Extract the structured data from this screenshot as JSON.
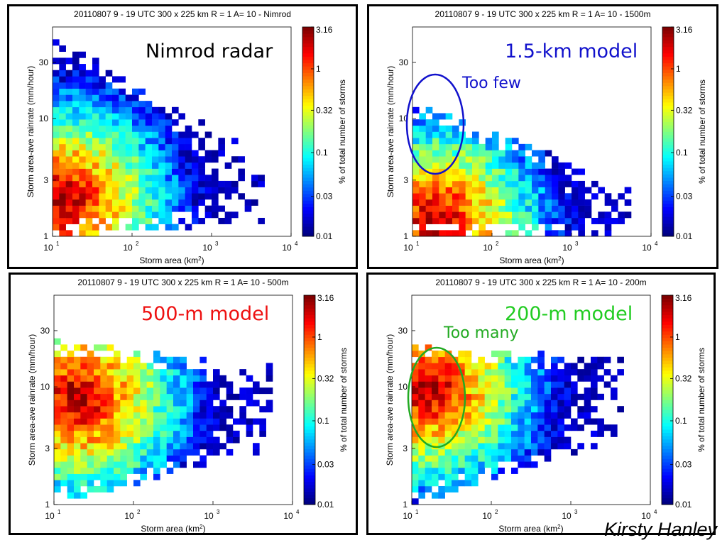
{
  "axis": {
    "xlabel": "Storm area (km",
    "xlabel_sup": "2",
    "xlabel_close": ")",
    "ylabel": "Storm area-ave rainrate (mm/hour)",
    "xticks": [
      "10",
      "10",
      "10",
      "10"
    ],
    "xtick_exponents": [
      "1",
      "2",
      "3",
      "4"
    ],
    "yticks": [
      "1",
      "3",
      "10",
      "30"
    ],
    "colorbar_label": "% of total number of storms",
    "colorbar_ticks": [
      "0.01",
      "0.03",
      "0.1",
      "0.32",
      "1",
      "3.16"
    ]
  },
  "panels": [
    {
      "id": "nimrod",
      "title": "20110807 9 - 19 UTC 300 x 225 km R = 1 A= 10 - Nimrod",
      "label": "Nimrod radar",
      "label_color": "#000000",
      "border_color": "#000000",
      "annotation": "",
      "annotation_color": "",
      "ellipse": false
    },
    {
      "id": "km15",
      "title": "20110807 9 - 19 UTC 300 x 225 km R = 1 A= 10 - 1500m",
      "label": "1.5-km model",
      "label_color": "#1111cc",
      "border_color": "#1a2fc4",
      "annotation": "Too few",
      "annotation_color": "#1111cc",
      "ellipse": true
    },
    {
      "id": "m500",
      "title": "20110807 9 - 19 UTC 300 x 225 km R = 1 A= 10 - 500m",
      "label": "500-m model",
      "label_color": "#ee1111",
      "border_color": "#dd2222",
      "annotation": "",
      "annotation_color": "",
      "ellipse": false
    },
    {
      "id": "m200",
      "title": "20110807 9 - 19 UTC 300 x 225 km R = 1 A= 10 - 200m",
      "label": "200-m model",
      "label_color": "#22cc22",
      "border_color": "#33dd33",
      "annotation": "Too many",
      "annotation_color": "#22aa22",
      "ellipse": true
    }
  ],
  "author": "Kirsty Hanley",
  "chart_data": [
    {
      "type": "heatmap",
      "title": "20110807 9 - 19 UTC 300 x 225 km R = 1 A= 10 - Nimrod",
      "xlabel": "Storm area (km2)",
      "ylabel": "Storm area-ave rainrate (mm/hour)",
      "xscale": "log",
      "yscale": "log",
      "xlim": [
        10,
        10000
      ],
      "ylim": [
        1,
        60
      ],
      "color_scale": "log",
      "clim": [
        0.01,
        3.16
      ],
      "colorbar_label": "% of total number of storms",
      "peak": {
        "x": 14,
        "y": 2,
        "value": 3.16
      },
      "extent": {
        "x_max": 5000,
        "y_max": 50
      }
    },
    {
      "type": "heatmap",
      "title": "20110807 9 - 19 UTC 300 x 225 km R = 1 A= 10 - 1500m",
      "xlabel": "Storm area (km2)",
      "ylabel": "Storm area-ave rainrate (mm/hour)",
      "xscale": "log",
      "yscale": "log",
      "xlim": [
        10,
        10000
      ],
      "ylim": [
        1,
        60
      ],
      "color_scale": "log",
      "clim": [
        0.01,
        3.16
      ],
      "colorbar_label": "% of total number of storms",
      "peak": {
        "x": 20,
        "y": 1.3,
        "value": 3.16
      },
      "extent": {
        "x_max": 6000,
        "y_max": 14
      }
    },
    {
      "type": "heatmap",
      "title": "20110807 9 - 19 UTC 300 x 225 km R = 1 A= 10 - 500m",
      "xlabel": "Storm area (km2)",
      "ylabel": "Storm area-ave rainrate (mm/hour)",
      "xscale": "log",
      "yscale": "log",
      "xlim": [
        10,
        10000
      ],
      "ylim": [
        1,
        60
      ],
      "color_scale": "log",
      "clim": [
        0.01,
        3.16
      ],
      "colorbar_label": "% of total number of storms",
      "peak": {
        "x": 20,
        "y": 8,
        "value": 2.0
      },
      "extent": {
        "x_max": 6000,
        "y_max": 25
      }
    },
    {
      "type": "heatmap",
      "title": "20110807 9 - 19 UTC 300 x 225 km R = 1 A= 10 - 200m",
      "xlabel": "Storm area (km2)",
      "ylabel": "Storm area-ave rainrate (mm/hour)",
      "xscale": "log",
      "yscale": "log",
      "xlim": [
        10,
        10000
      ],
      "ylim": [
        1,
        60
      ],
      "color_scale": "log",
      "clim": [
        0.01,
        3.16
      ],
      "colorbar_label": "% of total number of storms",
      "peak": {
        "x": 16,
        "y": 10,
        "value": 3.16
      },
      "extent": {
        "x_max": 5000,
        "y_max": 22
      }
    }
  ]
}
